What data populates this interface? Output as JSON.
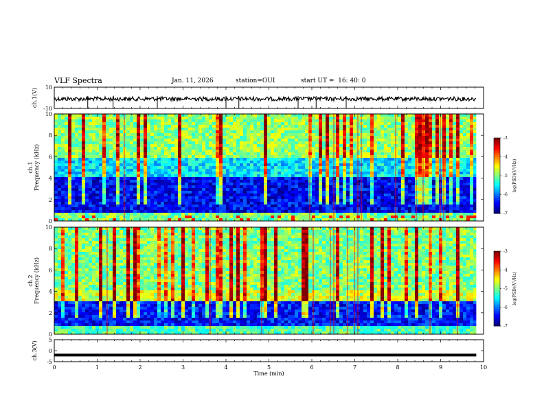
{
  "header": {
    "title": "VLF Spectra",
    "date": "Jan. 11, 2026",
    "station": "station=OUI",
    "start": "start UT =  16: 40: 0"
  },
  "chart_data": [
    {
      "type": "line",
      "panel": "ch1-waveform",
      "ylabel": "ch.1(V)",
      "ylim": [
        -10,
        10
      ],
      "yticks": [
        "10",
        "-10"
      ],
      "xlim": [
        0,
        10
      ],
      "baseline": -1,
      "spikes": [
        0.78,
        1.37,
        2.4,
        4.0,
        4.3,
        5.68,
        6.1,
        6.8
      ]
    },
    {
      "type": "heatmap",
      "panel": "ch1-spectrogram",
      "ylabel": "ch.1\nFrequency (kHz)",
      "ylabel_line1": "ch.1",
      "ylabel_line2": "Frequency (kHz)",
      "xlim": [
        0,
        10
      ],
      "ylim": [
        0,
        10
      ],
      "yticks": [
        "0",
        "2",
        "4",
        "6",
        "8",
        "10"
      ],
      "colorbar": {
        "label": "log(PSD)(V²/Hz)",
        "range": [
          -7,
          -3
        ],
        "ticks": [
          "-3",
          "-4",
          "-5",
          "-6",
          "-7"
        ]
      }
    },
    {
      "type": "heatmap",
      "panel": "ch2-spectrogram",
      "ylabel": "ch.2\nFrequency (kHz)",
      "ylabel_line1": "ch.2",
      "ylabel_line2": "Frequency (kHz)",
      "xlim": [
        0,
        10
      ],
      "ylim": [
        0,
        10
      ],
      "yticks": [
        "0",
        "2",
        "4",
        "6",
        "8",
        "10"
      ],
      "colorbar": {
        "label": "log(PSD)(V²/Hz)",
        "range": [
          -7,
          -3
        ],
        "ticks": [
          "-3",
          "-4",
          "-5",
          "-6",
          "-7"
        ]
      }
    },
    {
      "type": "line",
      "panel": "ch3-waveform",
      "ylabel": "ch.3(V)",
      "ylim": [
        -5,
        5
      ],
      "yticks": [
        "5",
        "0",
        "-5"
      ],
      "xlim": [
        0,
        10
      ],
      "level": -2,
      "xlabel": "Time (min)",
      "xticks": [
        "0",
        "1",
        "2",
        "3",
        "4",
        "5",
        "6",
        "7",
        "8",
        "9",
        "10"
      ]
    }
  ]
}
